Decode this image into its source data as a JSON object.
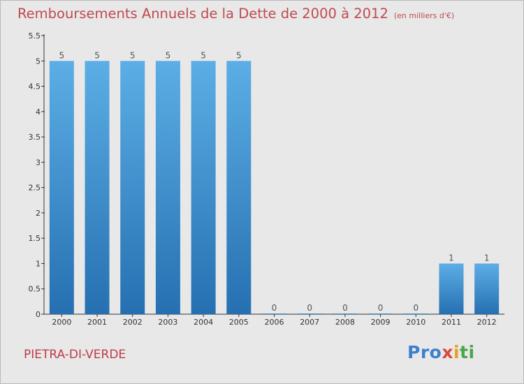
{
  "title": "Remboursements Annuels de la Dette de 2000 à 2012",
  "unit": "(en milliers d'€)",
  "commune": "PIETRA-DI-VERDE",
  "logo": [
    "Pro",
    "x",
    "i",
    "ti"
  ],
  "colors": {
    "bar_light": "#5caee6",
    "bar_dark": "#2670b1",
    "title": "#c04a4f"
  },
  "chart_data": {
    "type": "bar",
    "title": "Remboursements Annuels de la Dette de 2000 à 2012",
    "ylabel": "",
    "xlabel": "",
    "ylim": [
      0,
      5.5
    ],
    "yticks": [
      "0",
      "0.5",
      "1",
      "1.5",
      "2",
      "2.5",
      "3",
      "3.5",
      "4",
      "4.5",
      "5",
      "5.5"
    ],
    "categories": [
      "2000",
      "2001",
      "2002",
      "2003",
      "2004",
      "2005",
      "2006",
      "2007",
      "2008",
      "2009",
      "2010",
      "2011",
      "2012"
    ],
    "values": [
      5,
      5,
      5,
      5,
      5,
      5,
      0,
      0,
      0,
      0,
      0,
      1,
      1
    ],
    "grid": false,
    "legend": "none"
  }
}
